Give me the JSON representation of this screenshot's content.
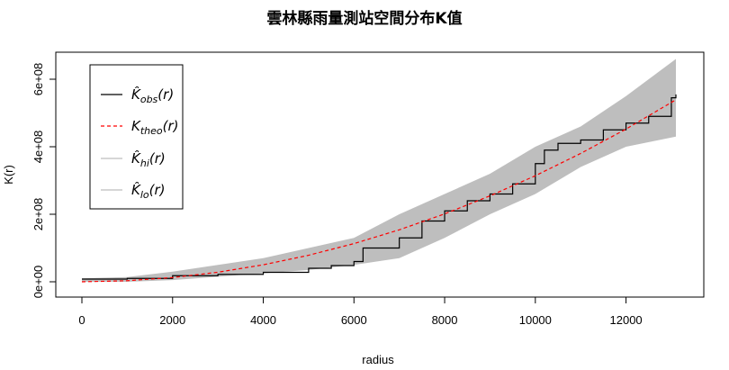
{
  "chart_data": {
    "type": "line",
    "title": "雲林縣雨量測站空間分布K值",
    "xlabel": "radius",
    "ylabel": "K(r)",
    "xlim": [
      0,
      13200
    ],
    "ylim": [
      0,
      660000000
    ],
    "x_ticks": [
      0,
      2000,
      4000,
      6000,
      8000,
      10000,
      12000
    ],
    "x_tick_labels": [
      "0",
      "2000",
      "4000",
      "6000",
      "8000",
      "10000",
      "12000"
    ],
    "y_ticks": [
      0,
      200000000,
      400000000,
      600000000
    ],
    "y_tick_labels": [
      "0e+00",
      "2e+08",
      "4e+08",
      "6e+08"
    ],
    "legend": {
      "position": "top-left",
      "entries": [
        {
          "label": "K̂obs(r)",
          "color": "#000000",
          "style": "solid"
        },
        {
          "label": "Ktheo(r)",
          "color": "#ff0000",
          "style": "dashed"
        },
        {
          "label": "K̂hi(r)",
          "color": "#bebebe",
          "style": "solid"
        },
        {
          "label": "K̂lo(r)",
          "color": "#bebebe",
          "style": "solid"
        }
      ]
    },
    "envelope": {
      "color": "#bebebe",
      "x": [
        0,
        1000,
        2000,
        3000,
        4000,
        5000,
        6000,
        7000,
        8000,
        9000,
        10000,
        11000,
        12000,
        13100
      ],
      "lo": [
        0,
        0,
        5000000,
        15000000,
        25000000,
        35000000,
        50000000,
        70000000,
        130000000,
        200000000,
        260000000,
        340000000,
        400000000,
        430000000
      ],
      "hi": [
        10000000,
        14000000,
        30000000,
        50000000,
        70000000,
        100000000,
        130000000,
        200000000,
        260000000,
        320000000,
        400000000,
        460000000,
        550000000,
        660000000
      ]
    },
    "series": [
      {
        "name": "obs",
        "color": "#000000",
        "style": "step",
        "x": [
          0,
          1000,
          2000,
          3000,
          4000,
          5000,
          5500,
          6000,
          6200,
          7000,
          7500,
          8000,
          8500,
          9000,
          9500,
          10000,
          10200,
          10500,
          11000,
          11500,
          12000,
          12500,
          13000,
          13100
        ],
        "y": [
          8000000,
          10000000,
          18000000,
          22000000,
          28000000,
          40000000,
          48000000,
          60000000,
          100000000,
          130000000,
          180000000,
          210000000,
          240000000,
          260000000,
          290000000,
          350000000,
          390000000,
          410000000,
          420000000,
          450000000,
          470000000,
          490000000,
          545000000,
          555000000
        ]
      },
      {
        "name": "theo",
        "color": "#ff0000",
        "style": "dashed",
        "theoretical": "pi*r^2",
        "x": [
          0,
          1000,
          2000,
          3000,
          4000,
          5000,
          6000,
          7000,
          8000,
          9000,
          10000,
          11000,
          12000,
          13100
        ],
        "y": [
          0,
          3141593,
          12566371,
          28274334,
          50265482,
          78539816,
          113097336,
          153938040,
          201061930,
          254469005,
          314159265,
          380132711,
          452389342,
          539129556
        ]
      }
    ]
  }
}
